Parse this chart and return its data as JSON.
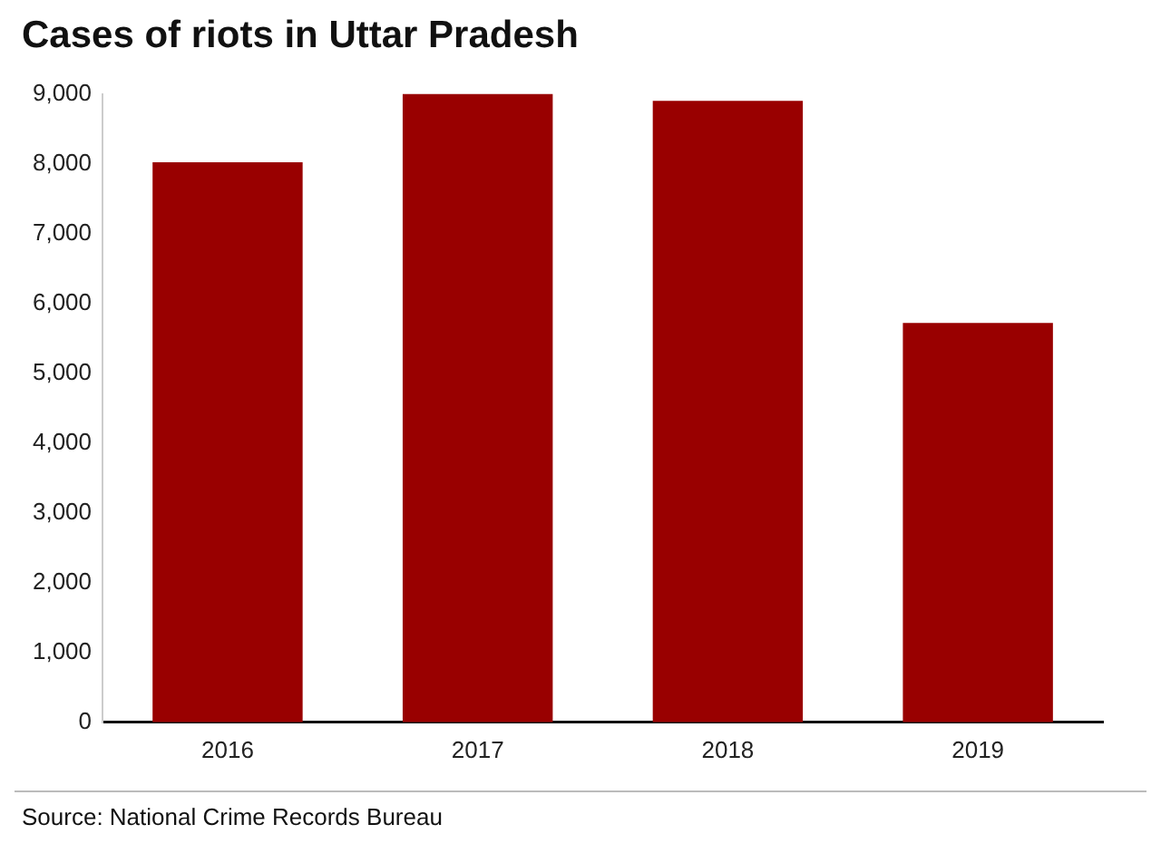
{
  "chart_data": {
    "type": "bar",
    "title": "Cases of riots in Uttar Pradesh",
    "categories": [
      "2016",
      "2017",
      "2018",
      "2019"
    ],
    "values": [
      8020,
      9000,
      8900,
      5720
    ],
    "color": "#990000",
    "ylim": [
      0,
      9000
    ],
    "yticks": [
      {
        "value": 0,
        "label": "0"
      },
      {
        "value": 1000,
        "label": "1,000"
      },
      {
        "value": 2000,
        "label": "2,000"
      },
      {
        "value": 3000,
        "label": "3,000"
      },
      {
        "value": 4000,
        "label": "4,000"
      },
      {
        "value": 5000,
        "label": "5,000"
      },
      {
        "value": 6000,
        "label": "6,000"
      },
      {
        "value": 7000,
        "label": "7,000"
      },
      {
        "value": 8000,
        "label": "8,000"
      },
      {
        "value": 9000,
        "label": "9,000"
      }
    ],
    "grid": false,
    "legend": false,
    "annotations": [
      "Source: National Crime Records Bureau"
    ]
  }
}
